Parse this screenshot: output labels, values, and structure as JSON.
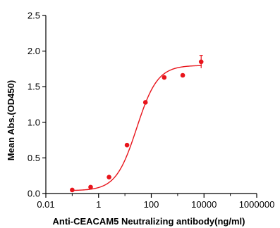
{
  "chart_data": {
    "type": "scatter",
    "title": "",
    "xlabel": "Anti-CEACAM5 Neutralizing antibody(ng/ml)",
    "ylabel": "Mean Abs.(OD450)",
    "x_scale": "log10",
    "xlim": [
      0.01,
      1000000
    ],
    "ylim": [
      0.0,
      2.5
    ],
    "x_ticks": [
      0.01,
      1,
      100,
      10000,
      1000000
    ],
    "x_tick_labels": [
      "0.01",
      "1",
      "100",
      "10000",
      "1000000"
    ],
    "y_ticks": [
      0.0,
      0.5,
      1.0,
      1.5,
      2.0,
      2.5
    ],
    "y_tick_labels": [
      "0.0",
      "0.5",
      "1.0",
      "1.5",
      "2.0",
      "2.5"
    ],
    "grid": false,
    "legend": "none",
    "series": [
      {
        "color": "#e8141b",
        "x": [
          0.1,
          0.5,
          2.5,
          12,
          60,
          310,
          1560,
          7800
        ],
        "y": [
          0.05,
          0.09,
          0.23,
          0.68,
          1.28,
          1.63,
          1.66,
          1.85
        ],
        "error": [
          0,
          0,
          0,
          0,
          0,
          0,
          0,
          0.09
        ]
      }
    ],
    "fit": {
      "color": "#e8141b",
      "model": "4PL",
      "bottom": 0.04,
      "top": 1.8,
      "ec50": 28,
      "hill": 1.1,
      "x_range": [
        0.1,
        8200
      ]
    }
  }
}
